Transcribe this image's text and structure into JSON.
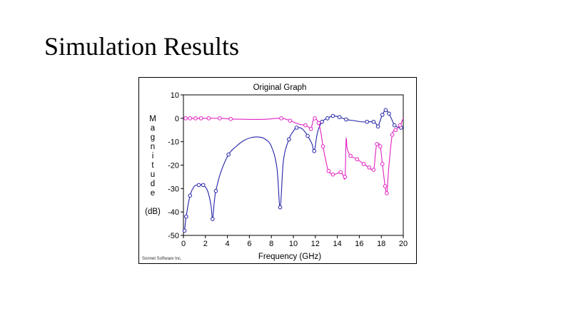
{
  "slide": {
    "title": "Simulation Results"
  },
  "chart_data": {
    "type": "line",
    "title": "Original Graph",
    "xlabel": "Frequency (GHz)",
    "ylabel_letters": [
      "M",
      "a",
      "g",
      "n",
      "i",
      "t",
      "u",
      "d",
      "e"
    ],
    "ylabel_unit": "(dB)",
    "credit": "Sonnet Software Inc.",
    "xlim": [
      0,
      20
    ],
    "ylim": [
      -50,
      10
    ],
    "xticks": [
      0,
      2,
      4,
      6,
      8,
      10,
      12,
      14,
      16,
      18,
      20
    ],
    "yticks": [
      10,
      0,
      -10,
      -20,
      -30,
      -40,
      -50
    ],
    "grid": false,
    "legend": "none",
    "series": [
      {
        "color": "#2222aa",
        "markers": [
          [
            0.1,
            -48
          ],
          [
            0.25,
            -42
          ],
          [
            0.6,
            -33
          ],
          [
            1.4,
            -28.5
          ],
          [
            1.8,
            -28.5
          ],
          [
            2.65,
            -43
          ],
          [
            2.95,
            -31
          ],
          [
            4.1,
            -15.5
          ],
          [
            8.8,
            -38
          ],
          [
            9.6,
            -9
          ],
          [
            10.3,
            -4
          ],
          [
            11.3,
            -7.5
          ],
          [
            11.9,
            -14
          ],
          [
            12.6,
            -1.5
          ],
          [
            13.1,
            0
          ],
          [
            13.6,
            1
          ],
          [
            14.2,
            0.5
          ],
          [
            14.8,
            -0.5
          ],
          [
            16.7,
            -1.5
          ],
          [
            17.3,
            -1.5
          ],
          [
            17.7,
            -3.5
          ],
          [
            18.1,
            1.5
          ],
          [
            18.4,
            3.5
          ],
          [
            18.7,
            2
          ],
          [
            19.2,
            -3
          ],
          [
            19.8,
            -4
          ]
        ],
        "curve": [
          [
            0.1,
            -48
          ],
          [
            0.25,
            -42
          ],
          [
            0.6,
            -33
          ],
          [
            1.0,
            -29
          ],
          [
            1.4,
            -28.5
          ],
          [
            1.8,
            -28.5
          ],
          [
            2.2,
            -31
          ],
          [
            2.5,
            -37
          ],
          [
            2.65,
            -43
          ],
          [
            2.8,
            -36
          ],
          [
            2.95,
            -31
          ],
          [
            3.4,
            -23
          ],
          [
            4.1,
            -15.5
          ],
          [
            4.8,
            -12
          ],
          [
            5.5,
            -9.5
          ],
          [
            6.2,
            -8.2
          ],
          [
            6.8,
            -8
          ],
          [
            7.4,
            -8.8
          ],
          [
            8.0,
            -12
          ],
          [
            8.5,
            -21
          ],
          [
            8.8,
            -38
          ],
          [
            9.1,
            -18
          ],
          [
            9.6,
            -9
          ],
          [
            10.0,
            -5.5
          ],
          [
            10.3,
            -4
          ],
          [
            10.8,
            -4.5
          ],
          [
            11.3,
            -7.5
          ],
          [
            11.7,
            -11
          ],
          [
            11.9,
            -14
          ],
          [
            12.2,
            -6
          ],
          [
            12.6,
            -1.5
          ],
          [
            13.1,
            0
          ],
          [
            13.6,
            1
          ],
          [
            14.2,
            0.5
          ],
          [
            14.8,
            -0.5
          ],
          [
            15.5,
            -1
          ],
          [
            16.2,
            -1.5
          ],
          [
            16.7,
            -1.5
          ],
          [
            17.3,
            -1.5
          ],
          [
            17.55,
            -2.5
          ],
          [
            17.7,
            -3.5
          ],
          [
            17.9,
            -1
          ],
          [
            18.1,
            1.5
          ],
          [
            18.4,
            3.5
          ],
          [
            18.7,
            2
          ],
          [
            19.0,
            -1
          ],
          [
            19.2,
            -3
          ],
          [
            19.5,
            -3.8
          ],
          [
            19.8,
            -4
          ],
          [
            20.0,
            -3.5
          ]
        ]
      },
      {
        "color": "#e020c0",
        "markers": [
          [
            0.2,
            0
          ],
          [
            0.6,
            0
          ],
          [
            1.1,
            0
          ],
          [
            1.6,
            0
          ],
          [
            2.3,
            0
          ],
          [
            3.3,
            0
          ],
          [
            4.3,
            -0.3
          ],
          [
            8.9,
            0
          ],
          [
            9.7,
            -1
          ],
          [
            11.1,
            -3
          ],
          [
            11.6,
            -4.5
          ],
          [
            11.95,
            0
          ],
          [
            12.3,
            -2
          ],
          [
            12.7,
            -12
          ],
          [
            13.2,
            -22.5
          ],
          [
            13.6,
            -24
          ],
          [
            14.3,
            -23
          ],
          [
            14.7,
            -25
          ],
          [
            15.2,
            -16
          ],
          [
            15.8,
            -17.5
          ],
          [
            16.4,
            -19.5
          ],
          [
            16.9,
            -21
          ],
          [
            17.3,
            -22
          ],
          [
            17.6,
            -11
          ],
          [
            17.9,
            -12
          ],
          [
            18.1,
            -19.5
          ],
          [
            18.35,
            -29
          ],
          [
            18.5,
            -32
          ],
          [
            19.0,
            -7
          ],
          [
            19.3,
            -5
          ],
          [
            19.7,
            -3
          ]
        ],
        "curve": [
          [
            0.0,
            0
          ],
          [
            0.2,
            0
          ],
          [
            0.6,
            0
          ],
          [
            1.1,
            0
          ],
          [
            1.6,
            0
          ],
          [
            2.3,
            0
          ],
          [
            3.3,
            0
          ],
          [
            4.3,
            -0.3
          ],
          [
            5.5,
            -0.4
          ],
          [
            6.5,
            -0.5
          ],
          [
            7.5,
            -0.4
          ],
          [
            8.9,
            0
          ],
          [
            9.7,
            -1
          ],
          [
            10.5,
            -2.5
          ],
          [
            11.1,
            -3
          ],
          [
            11.4,
            -3.8
          ],
          [
            11.6,
            -4.5
          ],
          [
            11.8,
            -1
          ],
          [
            11.95,
            0
          ],
          [
            12.1,
            -0.5
          ],
          [
            12.3,
            -2
          ],
          [
            12.5,
            -6
          ],
          [
            12.7,
            -12
          ],
          [
            12.95,
            -18
          ],
          [
            13.2,
            -22.5
          ],
          [
            13.6,
            -24
          ],
          [
            14.0,
            -23.5
          ],
          [
            14.3,
            -23
          ],
          [
            14.5,
            -24
          ],
          [
            14.7,
            -25
          ],
          [
            14.8,
            -9
          ],
          [
            14.9,
            -13
          ],
          [
            15.2,
            -16
          ],
          [
            15.8,
            -17.5
          ],
          [
            16.4,
            -19.5
          ],
          [
            16.9,
            -21
          ],
          [
            17.3,
            -22
          ],
          [
            17.45,
            -16
          ],
          [
            17.6,
            -11
          ],
          [
            17.9,
            -12
          ],
          [
            18.1,
            -19.5
          ],
          [
            18.35,
            -29
          ],
          [
            18.5,
            -32
          ],
          [
            18.7,
            -20
          ],
          [
            19.0,
            -7
          ],
          [
            19.3,
            -5
          ],
          [
            19.7,
            -3
          ],
          [
            20.0,
            0
          ]
        ]
      }
    ]
  }
}
